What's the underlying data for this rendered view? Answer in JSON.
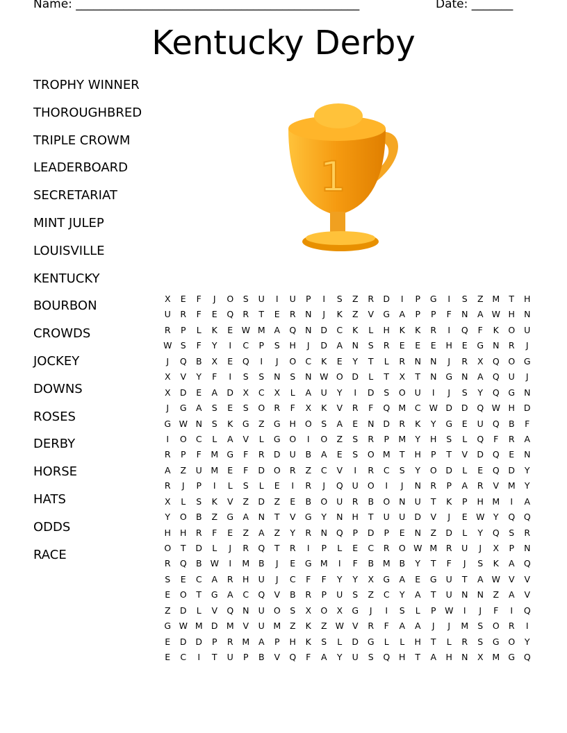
{
  "header": {
    "name_label": "Name: ________________________________________________",
    "date_label": "Date: _______"
  },
  "title": "Kentucky Derby",
  "words": [
    "TROPHY WINNER",
    "THOROUGHBRED",
    "TRIPLE CROWM",
    "LEADERBOARD",
    "SECRETARIAT",
    "MINT JULEP",
    "LOUISVILLE",
    "KENTUCKY",
    "BOURBON",
    "CROWDS",
    "JOCKEY",
    "DOWNS",
    "ROSES",
    "DERBY",
    "HORSE",
    "HATS",
    "ODDS",
    "RACE"
  ],
  "image": {
    "icon": "trophy-icon",
    "label": "1",
    "colors": {
      "gold": "#f5a623",
      "dark": "#e07f00",
      "light": "#ffd35a"
    }
  },
  "grid": [
    "XEFJOSUIUPISZRDIPGISZMTH",
    "URFEQRTERNJKZVGAPPFNAWHN",
    "RPLKEWMAQNDCKLHKKRIQFKOU",
    "WSFYICPSHJDANSREEEHEGNRJ",
    "JQBXEQIJOCKEYTLRNNJRXQOG",
    "XVYFISSNSNWODLTXTNGNAQUJ",
    "XDEADXCXLAUYIDSOUIJSYQGN",
    "JGASESORFXKVRFQMCWDDQWHD",
    "GWNSKGZGHOSAENDRKYGEUQBF",
    "IOCLAVLGOIOZSRPMYHSLQFRA",
    "RPFMGFRDUBAESOMTHPTVDQEN",
    "AZUMEFDORZCVIRCSYODLEQDY",
    "RJPILSLEIRJQUOIJNRPARVMY",
    "XLSKVZDZEBOURBONUTKPHMIA",
    "YOBZGANTVGYNHTUUDVJEWYQQ",
    "HHRFEZAZYRNQPDPENZDLYQSR",
    "OTDLJRQTRIPLECROWMRUJXPN",
    "RQBWIMBJEGMIFBMBYTFJSKAQ",
    "SECARHUJCFFYYXGAEGUTAWVV",
    "EOTGACQVBRPUSZCYATUNNZAV",
    "ZDLVQNUOSXOXGJISLPWIJFIQ",
    "GWMDMVUMZKZWVRFAAJJMSORI",
    "EDDPRMAPHKSLDGLLHTLRSGOY",
    "ECITUPBVQFAYUSQHTAHNXMGQ"
  ]
}
